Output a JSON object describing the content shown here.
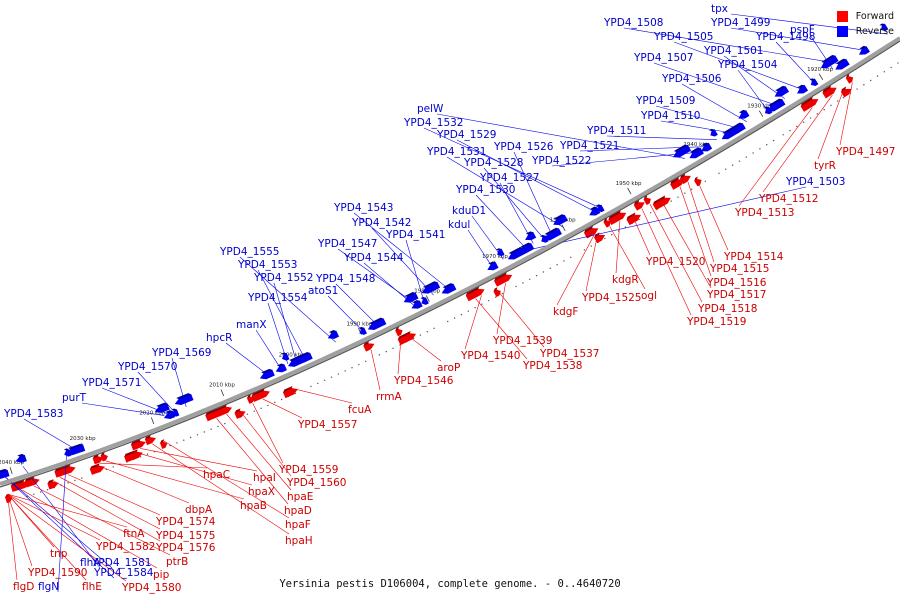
{
  "caption": "Yersinia pestis D106004, complete genome. - 0..4640720",
  "legend": [
    {
      "label": "Forward",
      "color": "#ff0000"
    },
    {
      "label": "Reverse",
      "color": "#0000ff"
    }
  ],
  "colors": {
    "forward": "#ee0000",
    "reverse": "#0000ee",
    "backbone": "#a0a0a0"
  },
  "ticks": [
    "1920 kbp",
    "1930 kbp",
    "1940 kbp",
    "1950 kbp",
    "1960 kbp",
    "1970 kbp",
    "1980 kbp",
    "1990 kbp",
    "2000 kbp",
    "2010 kbp",
    "2020 kbp",
    "2030 kbp",
    "2040 kbp"
  ],
  "reverse_genes": [
    "tpx",
    "YPD4_1499",
    "YPD4_1508",
    "pspF",
    "YPD4_1498",
    "YPD4_1505",
    "YPD4_1501",
    "YPD4_1507",
    "YPD4_1504",
    "YPD4_1506",
    "YPD4_1509",
    "YPD4_1510",
    "YPD4_1511",
    "YPD4_1521",
    "YPD4_1522",
    "pelW",
    "YPD4_1532",
    "YPD4_1529",
    "YPD4_1531",
    "YPD4_1526",
    "YPD4_1528",
    "YPD4_1527",
    "YPD4_1530",
    "YPD4_1503",
    "kduD1",
    "kdul",
    "YPD4_1543",
    "YPD4_1542",
    "YPD4_1541",
    "YPD4_1547",
    "YPD4_1544",
    "YPD4_1548",
    "atoS1",
    "YPD4_1555",
    "YPD4_1553",
    "YPD4_1552",
    "YPD4_1554",
    "manX",
    "hpcR",
    "YPD4_1569",
    "YPD4_1570",
    "YPD4_1571",
    "purT",
    "YPD4_1583",
    "flgN",
    "flhA",
    "YPD4_1584",
    "YPD4_1581"
  ],
  "forward_genes": [
    "YPD4_1497",
    "tyrR",
    "YPD4_1512",
    "YPD4_1513",
    "YPD4_1514",
    "YPD4_1515",
    "YPD4_1516",
    "YPD4_1517",
    "YPD4_1518",
    "YPD4_1519",
    "YPD4_1520",
    "kdgR",
    "ogl",
    "YPD4_1525",
    "kdgF",
    "YPD4_1539",
    "YPD4_1537",
    "YPD4_1540",
    "YPD4_1538",
    "aroP",
    "YPD4_1546",
    "rrmA",
    "fcuA",
    "YPD4_1557",
    "YPD4_1559",
    "YPD4_1560",
    "hpaE",
    "hpaD",
    "hpaF",
    "hpaH",
    "hpaI",
    "hpaX",
    "hpaB",
    "hpaC",
    "dbpA",
    "YPD4_1574",
    "YPD4_1575",
    "YPD4_1576",
    "ptrB",
    "pip",
    "YPD4_1580",
    "ftnA",
    "YPD4_1582",
    "YPD4_1590",
    "tnp",
    "flgD",
    "flhE"
  ]
}
